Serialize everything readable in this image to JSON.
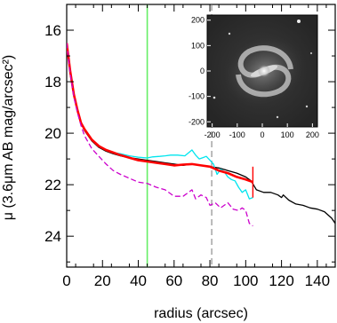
{
  "chart_data": [
    {
      "type": "line",
      "xlabel": "radius (arcsec)",
      "ylabel": "μ (3.6μm AB mag/arcsec²)",
      "xlim": [
        0,
        150
      ],
      "ylim": [
        25.2,
        15.0
      ],
      "y_inverted": true,
      "x_ticks": [
        0,
        20,
        40,
        60,
        80,
        100,
        120,
        140
      ],
      "y_ticks": [
        16,
        18,
        20,
        22,
        24
      ],
      "grid": false,
      "series": [
        {
          "color": "#000000",
          "style": "solid",
          "x": [
            0,
            2,
            4,
            6,
            8,
            10,
            14,
            18,
            22,
            26,
            30,
            35,
            40,
            45,
            50,
            55,
            60,
            65,
            70,
            75,
            80,
            85,
            90,
            95,
            100,
            103,
            106,
            110,
            114,
            118,
            120,
            121,
            124,
            128,
            132,
            136,
            140,
            144,
            148,
            150
          ],
          "y": [
            16.6,
            17.7,
            18.5,
            19.1,
            19.6,
            19.9,
            20.3,
            20.55,
            20.7,
            20.8,
            20.88,
            20.95,
            21.0,
            21.05,
            21.1,
            21.15,
            21.2,
            21.25,
            21.2,
            21.25,
            21.3,
            21.35,
            21.45,
            21.55,
            21.7,
            21.85,
            22.2,
            22.3,
            22.3,
            22.4,
            22.5,
            22.4,
            22.6,
            22.75,
            22.8,
            22.9,
            22.95,
            23.05,
            23.3,
            23.5
          ]
        },
        {
          "color": "#00e5ee",
          "style": "solid",
          "x": [
            0,
            2,
            4,
            6,
            8,
            10,
            14,
            18,
            22,
            26,
            30,
            35,
            40,
            45,
            48,
            52,
            55,
            58,
            62,
            66,
            70,
            72,
            74,
            76,
            78,
            80,
            82,
            84,
            86,
            88,
            90,
            92,
            94,
            96,
            98,
            100,
            102,
            104
          ],
          "y": [
            16.5,
            17.6,
            18.5,
            19.1,
            19.6,
            19.85,
            20.25,
            20.5,
            20.65,
            20.75,
            20.8,
            20.88,
            20.93,
            20.96,
            20.92,
            20.9,
            20.88,
            20.85,
            20.85,
            20.88,
            20.65,
            20.85,
            21.0,
            20.95,
            20.9,
            21.05,
            21.2,
            21.6,
            21.4,
            21.5,
            21.7,
            21.8,
            21.85,
            22.1,
            22.3,
            22.2,
            22.55,
            22.5
          ]
        },
        {
          "color": "#ff0000",
          "style": "solid",
          "x": [
            0,
            2,
            4,
            6,
            8,
            10,
            14,
            18,
            22,
            26,
            30,
            35,
            40,
            45,
            50,
            55,
            60,
            65,
            70,
            75,
            80,
            85,
            90,
            95,
            100,
            104
          ],
          "y": [
            16.5,
            17.6,
            18.5,
            19.1,
            19.6,
            19.85,
            20.25,
            20.5,
            20.65,
            20.75,
            20.85,
            20.95,
            21.05,
            21.1,
            21.15,
            21.2,
            21.25,
            21.22,
            21.2,
            21.25,
            21.3,
            21.45,
            21.55,
            21.7,
            21.8,
            21.9
          ]
        },
        {
          "color": "#cc00cc",
          "style": "dashed",
          "x": [
            0,
            2,
            4,
            6,
            8,
            10,
            14,
            18,
            22,
            26,
            30,
            35,
            40,
            45,
            50,
            55,
            60,
            65,
            70,
            72,
            75,
            78,
            80,
            83,
            86,
            90,
            93,
            96,
            98,
            100,
            102,
            104
          ],
          "y": [
            16.5,
            17.7,
            18.6,
            19.2,
            19.7,
            20.1,
            20.6,
            20.9,
            21.2,
            21.45,
            21.6,
            21.75,
            21.9,
            21.95,
            22.1,
            22.2,
            22.45,
            22.45,
            22.2,
            22.55,
            22.4,
            22.5,
            22.8,
            22.7,
            22.9,
            22.7,
            22.95,
            23.0,
            22.9,
            23.0,
            23.5,
            23.6
          ]
        }
      ],
      "vlines": [
        {
          "x": 45,
          "color": "#66ee66",
          "style": "solid"
        },
        {
          "x": 81,
          "color": "#777777",
          "style": "dashed"
        }
      ],
      "error_bar": {
        "x": 104,
        "y_low": 21.3,
        "y_high": 22.5,
        "color": "#ff0000"
      }
    },
    {
      "type": "heatmap",
      "xlim": [
        -220,
        220
      ],
      "ylim": [
        -220,
        220
      ],
      "x_ticks": [
        -200,
        -100,
        0,
        100,
        200
      ],
      "y_ticks": [
        200,
        100,
        0,
        -100,
        -200
      ],
      "content": "grayscale image of a barred spiral galaxy",
      "colormap": "gray"
    }
  ]
}
